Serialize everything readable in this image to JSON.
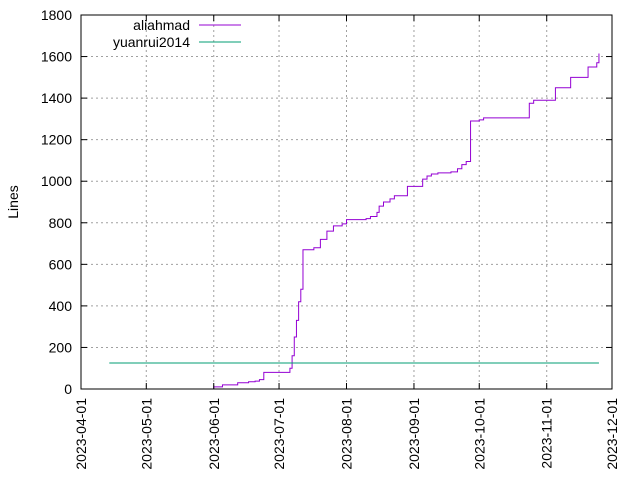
{
  "chart_data": {
    "type": "line",
    "title": "",
    "xlabel": "",
    "ylabel": "Lines",
    "x_type": "date",
    "xlim": [
      "2023-04-01",
      "2023-12-01"
    ],
    "ylim": [
      0,
      1800
    ],
    "x_ticks": [
      "2023-04-01",
      "2023-05-01",
      "2023-06-01",
      "2023-07-01",
      "2023-08-01",
      "2023-09-01",
      "2023-10-01",
      "2023-11-01",
      "2023-12-01"
    ],
    "y_ticks": [
      0,
      200,
      400,
      600,
      800,
      1000,
      1200,
      1400,
      1600,
      1800
    ],
    "grid": true,
    "legend_position": "top-left",
    "series": [
      {
        "name": "aliahmad",
        "color": "#9400d3",
        "step": true,
        "points": [
          [
            "2023-05-27",
            0
          ],
          [
            "2023-06-01",
            10
          ],
          [
            "2023-06-05",
            20
          ],
          [
            "2023-06-12",
            30
          ],
          [
            "2023-06-17",
            35
          ],
          [
            "2023-06-20",
            38
          ],
          [
            "2023-06-22",
            45
          ],
          [
            "2023-06-24",
            80
          ],
          [
            "2023-07-05",
            80
          ],
          [
            "2023-07-06",
            100
          ],
          [
            "2023-07-07",
            160
          ],
          [
            "2023-07-08",
            250
          ],
          [
            "2023-07-09",
            330
          ],
          [
            "2023-07-10",
            420
          ],
          [
            "2023-07-11",
            480
          ],
          [
            "2023-07-12",
            560
          ],
          [
            "2023-07-12",
            670
          ],
          [
            "2023-07-17",
            680
          ],
          [
            "2023-07-20",
            720
          ],
          [
            "2023-07-23",
            760
          ],
          [
            "2023-07-26",
            785
          ],
          [
            "2023-07-30",
            795
          ],
          [
            "2023-08-01",
            815
          ],
          [
            "2023-08-10",
            820
          ],
          [
            "2023-08-12",
            830
          ],
          [
            "2023-08-15",
            850
          ],
          [
            "2023-08-16",
            880
          ],
          [
            "2023-08-18",
            900
          ],
          [
            "2023-08-21",
            915
          ],
          [
            "2023-08-23",
            930
          ],
          [
            "2023-08-28",
            930
          ],
          [
            "2023-08-29",
            975
          ],
          [
            "2023-09-04",
            975
          ],
          [
            "2023-09-05",
            1010
          ],
          [
            "2023-09-07",
            1025
          ],
          [
            "2023-09-09",
            1035
          ],
          [
            "2023-09-12",
            1040
          ],
          [
            "2023-09-18",
            1045
          ],
          [
            "2023-09-21",
            1060
          ],
          [
            "2023-09-23",
            1080
          ],
          [
            "2023-09-25",
            1095
          ],
          [
            "2023-09-27",
            1290
          ],
          [
            "2023-10-01",
            1295
          ],
          [
            "2023-10-03",
            1305
          ],
          [
            "2023-10-19",
            1305
          ],
          [
            "2023-10-24",
            1310
          ],
          [
            "2023-10-24",
            1375
          ],
          [
            "2023-10-26",
            1390
          ],
          [
            "2023-11-05",
            1450
          ],
          [
            "2023-11-12",
            1500
          ],
          [
            "2023-11-20",
            1550
          ],
          [
            "2023-11-24",
            1570
          ],
          [
            "2023-11-25",
            1590
          ],
          [
            "2023-11-25",
            1615
          ]
        ]
      },
      {
        "name": "yuanrui2014",
        "color": "#009e73",
        "step": true,
        "points": [
          [
            "2023-04-14",
            125
          ],
          [
            "2023-11-25",
            125
          ]
        ]
      }
    ]
  }
}
